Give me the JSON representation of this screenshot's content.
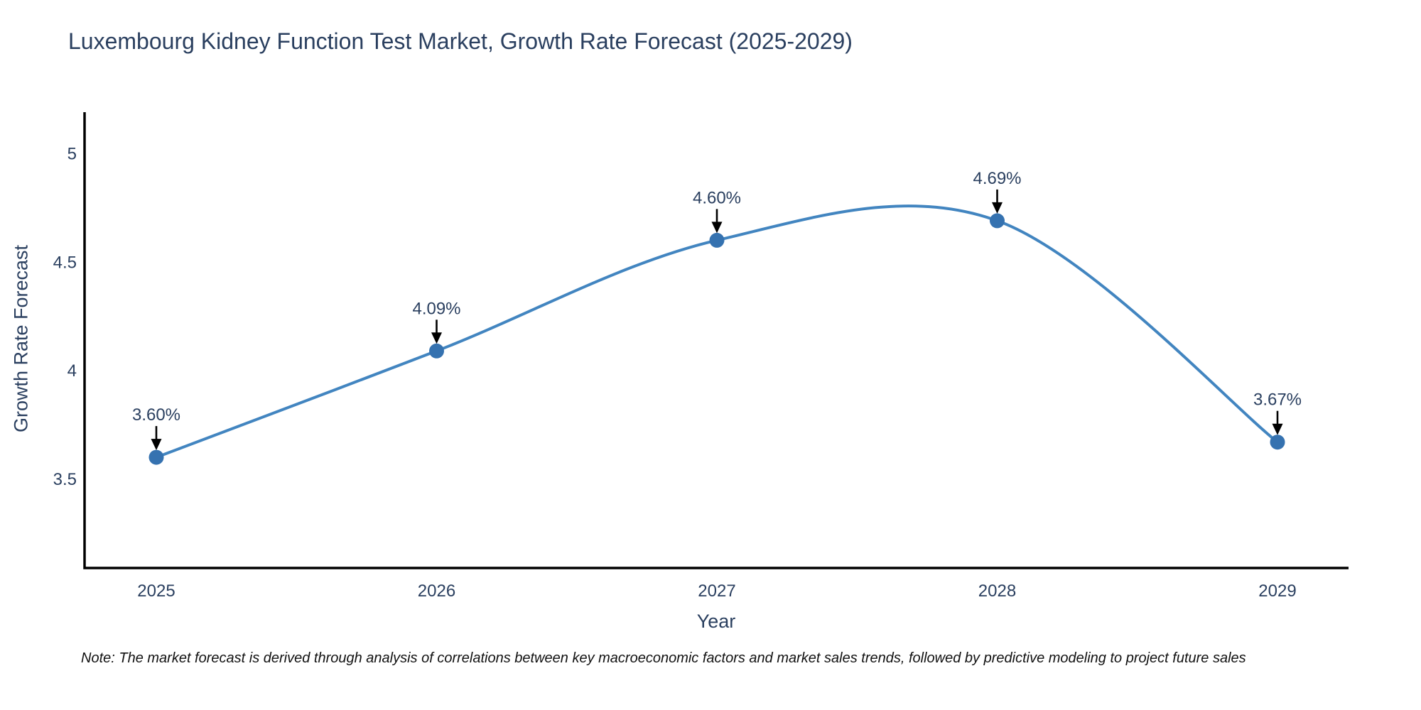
{
  "page": {
    "note": "Note: The market forecast is derived through analysis of correlations between key macroeconomic factors and market sales trends, followed by predictive modeling to project future sales"
  },
  "chart_data": {
    "type": "line",
    "title": "Luxembourg Kidney Function Test Market, Growth Rate Forecast (2025-2029)",
    "xlabel": "Year",
    "ylabel": "Growth Rate Forecast",
    "categories": [
      "2025",
      "2026",
      "2027",
      "2028",
      "2029"
    ],
    "values": [
      3.6,
      4.09,
      4.6,
      4.69,
      3.67
    ],
    "point_labels": [
      "3.60%",
      "4.09%",
      "4.60%",
      "4.69%",
      "3.67%"
    ],
    "series_name": "Growth Rate Forecast",
    "line_shape": "spline",
    "y_ticks": [
      5,
      4.5,
      4,
      3.5
    ],
    "y_tick_labels": [
      "5",
      "4.5",
      "4",
      "3.5"
    ],
    "ylim": [
      3.09,
      5.19
    ],
    "grid": false,
    "legend": false,
    "annotation_style": "label-with-down-arrow-to-point",
    "colors": {
      "line": "#4285c0",
      "marker": "#3572b0",
      "axis": "#000000",
      "text": "#2a3f5f",
      "arrow": "#000000",
      "note_text": "#111111",
      "background": "#ffffff"
    }
  }
}
